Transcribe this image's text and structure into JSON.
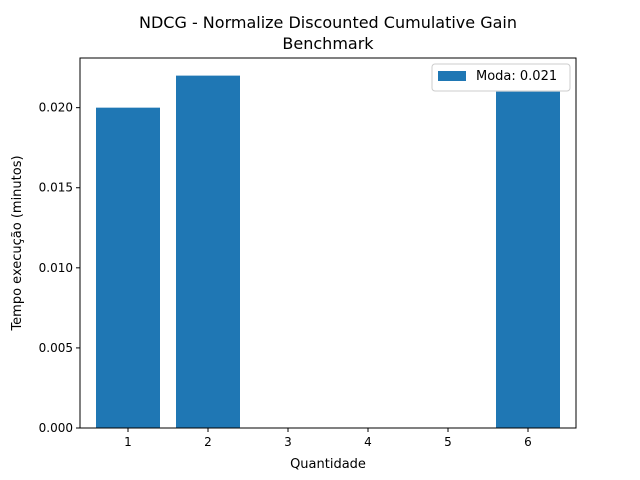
{
  "chart_data": {
    "type": "bar",
    "title": "NDCG - Normalize Discounted Cumulative Gain",
    "subtitle": "Benchmark",
    "xlabel": "Quantidade",
    "ylabel": "Tempo execução (minutos)",
    "categories": [
      "1",
      "2",
      "3",
      "4",
      "5",
      "6"
    ],
    "values": [
      0.02,
      0.022,
      0,
      0,
      0,
      0.021
    ],
    "ylim": [
      0,
      0.0231
    ],
    "yticks": [
      "0.000",
      "0.005",
      "0.010",
      "0.015",
      "0.020"
    ],
    "ytick_values": [
      0,
      0.005,
      0.01,
      0.015,
      0.02
    ],
    "legend": {
      "label": "Moda: 0.021",
      "position": "top-right"
    },
    "grid": false,
    "bar_color": "#1f77b4"
  }
}
